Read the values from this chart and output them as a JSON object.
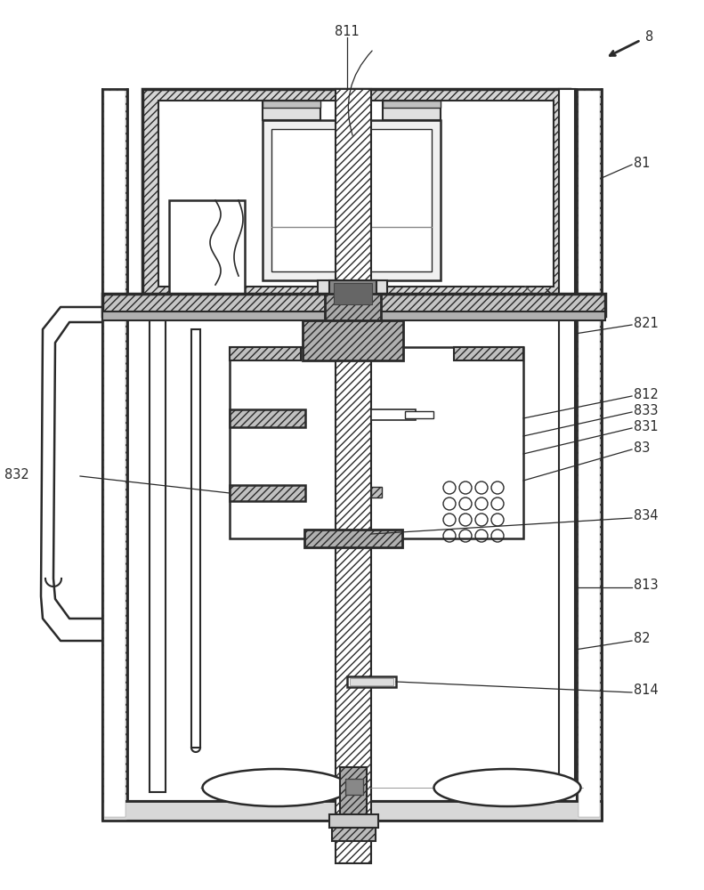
{
  "bg_color": "#ffffff",
  "lc": "#2a2a2a",
  "figsize": [
    7.91,
    10.0
  ],
  "dpi": 100
}
